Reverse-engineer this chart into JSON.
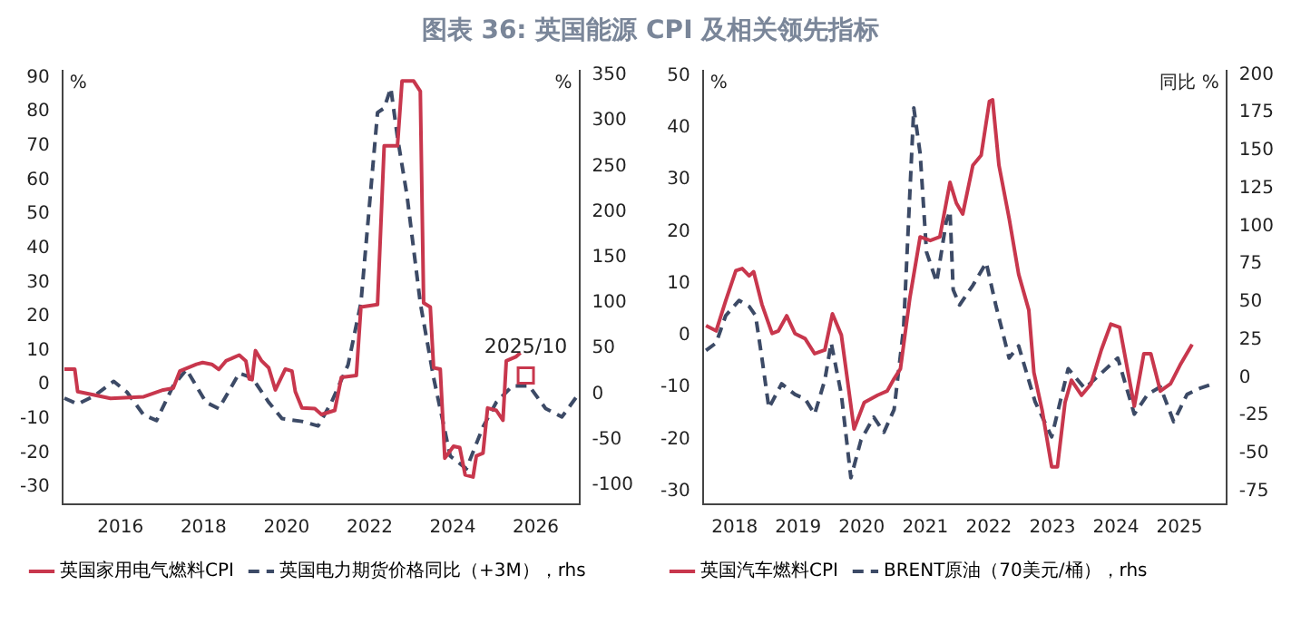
{
  "chart_data": [
    {
      "type": "line",
      "title": "图表 36: 英国能源 CPI 及相关领先指标",
      "ylabel": "%",
      "y2label": "%",
      "legend": "bottom",
      "grid": false,
      "marker": "none",
      "xlim": [
        2014.6,
        2027.05
      ],
      "xticks": [
        2016,
        2018,
        2020,
        2022,
        2024,
        2026
      ],
      "ylim": [
        -35,
        92
      ],
      "yticks": [
        -30,
        -20,
        -10,
        0,
        10,
        20,
        30,
        40,
        50,
        60,
        70,
        80,
        90
      ],
      "y2lim": [
        -121,
        355
      ],
      "y2ticks": [
        -100,
        -50,
        0,
        50,
        100,
        150,
        200,
        250,
        300,
        350
      ],
      "annotations": [
        {
          "text": "2025/10",
          "x": 2025.76,
          "y": 2.7
        }
      ],
      "series": [
        {
          "name": "英国家用电气燃料CPI",
          "color": "#c8374d",
          "line_style": "solid",
          "x": [
            2014.65,
            2014.9,
            2014.97,
            2015.37,
            2015.76,
            2016.56,
            2017.03,
            2017.27,
            2017.43,
            2017.83,
            2017.98,
            2018.2,
            2018.37,
            2018.54,
            2018.86,
            2019.02,
            2019.1,
            2019.17,
            2019.25,
            2019.4,
            2019.57,
            2019.73,
            2019.97,
            2020.13,
            2020.21,
            2020.37,
            2020.68,
            2020.84,
            2021.16,
            2021.32,
            2021.68,
            2021.79,
            2022.19,
            2022.35,
            2022.67,
            2022.78,
            2023.06,
            2023.22,
            2023.3,
            2023.46,
            2023.54,
            2023.7,
            2023.81,
            2024.02,
            2024.17,
            2024.3,
            2024.49,
            2024.57,
            2024.73,
            2024.84,
            2025.05,
            2025.21,
            2025.29,
            2025.52,
            2025.63
          ],
          "values": [
            4.6,
            4.6,
            -2,
            -3,
            -4,
            -3.5,
            -1.5,
            -1,
            4,
            6,
            6.5,
            6,
            4.5,
            7,
            8.7,
            7,
            1.7,
            1.5,
            10,
            7,
            5,
            -1.5,
            4.6,
            4,
            -2,
            -6.8,
            -7,
            -8.7,
            -7.5,
            2.2,
            2.7,
            22.8,
            23.5,
            70,
            70,
            89,
            89,
            86,
            24,
            22.8,
            5,
            4.6,
            -21.5,
            -18,
            -18.4,
            -26.4,
            -27,
            -20.8,
            -20,
            -6.8,
            -7.5,
            -10.4,
            7,
            8.2,
            9.4
          ]
        },
        {
          "type": "scatter",
          "color": "#c8374d",
          "marker": "square",
          "x": [
            2025.76
          ],
          "values": [
            2.7
          ]
        },
        {
          "name": "英国电力期货价格同比（+3M），rhs",
          "color": "#3c4a66",
          "line_style": "dashed",
          "axis": "y2",
          "x": [
            2014.65,
            2014.97,
            2015.37,
            2015.84,
            2016.16,
            2016.56,
            2016.87,
            2017.27,
            2017.59,
            2018.06,
            2018.37,
            2018.86,
            2019.17,
            2019.57,
            2019.89,
            2020.37,
            2020.76,
            2021.08,
            2021.48,
            2021.79,
            2022.19,
            2022.35,
            2022.51,
            2022.67,
            2022.9,
            2023.22,
            2023.54,
            2023.94,
            2024.33,
            2024.73,
            2025.05,
            2025.44,
            2025.84,
            2026.24,
            2026.63,
            2027.03
          ],
          "values": [
            -4.5,
            -11,
            -2,
            14,
            2,
            -23,
            -29,
            9,
            27,
            -9,
            -16,
            23,
            18,
            -9,
            -27,
            -30,
            -35,
            -9,
            32,
            100,
            309,
            314,
            336,
            282,
            218,
            100,
            18,
            -68,
            -82,
            -36,
            -9,
            9,
            9,
            -16,
            -25,
            0
          ]
        }
      ]
    },
    {
      "type": "line",
      "ylabel": "%",
      "y2label": "同比 %",
      "legend": "bottom",
      "grid": false,
      "marker": "none",
      "xlim": [
        2018,
        2026.24
      ],
      "xticks": [
        {
          "value": 2018.5,
          "label": "2018"
        },
        {
          "value": 2019.5,
          "label": "2019"
        },
        {
          "value": 2020.5,
          "label": "2020"
        },
        {
          "value": 2021.5,
          "label": "2021"
        },
        {
          "value": 2022.5,
          "label": "2022"
        },
        {
          "value": 2023.5,
          "label": "2023"
        },
        {
          "value": 2024.5,
          "label": "2024"
        },
        {
          "value": 2025.5,
          "label": "2025"
        }
      ],
      "ylim": [
        -32.5,
        51
      ],
      "yticks": [
        -30,
        -20,
        -10,
        0,
        10,
        20,
        30,
        40,
        50
      ],
      "y2lim": [
        -83.5,
        202.6
      ],
      "y2ticks": [
        -75,
        -50,
        -25,
        0,
        25,
        50,
        75,
        100,
        125,
        150,
        175,
        200
      ],
      "series": [
        {
          "name": "英国汽车燃料CPI",
          "color": "#c8374d",
          "line_style": "solid",
          "x": [
            2018.05,
            2018.21,
            2018.36,
            2018.52,
            2018.62,
            2018.73,
            2018.8,
            2018.93,
            2019.09,
            2019.19,
            2019.32,
            2019.45,
            2019.61,
            2019.76,
            2019.92,
            2020.04,
            2020.18,
            2020.38,
            2020.54,
            2020.75,
            2020.9,
            2021.01,
            2021.11,
            2021.26,
            2021.42,
            2021.58,
            2021.73,
            2021.89,
            2021.99,
            2022.09,
            2022.25,
            2022.38,
            2022.51,
            2022.56,
            2022.66,
            2022.82,
            2022.97,
            2023.13,
            2023.21,
            2023.34,
            2023.49,
            2023.58,
            2023.7,
            2023.8,
            2023.96,
            2024.11,
            2024.27,
            2024.42,
            2024.56,
            2024.79,
            2024.94,
            2025.05,
            2025.2,
            2025.36,
            2025.51,
            2025.7
          ],
          "values": [
            1.9,
            0.9,
            6.7,
            12.5,
            12.9,
            11.5,
            12.3,
            6,
            0.4,
            0.9,
            3.8,
            0.4,
            -0.6,
            -3.5,
            -2.8,
            4.2,
            0.1,
            -18,
            -12.9,
            -11.5,
            -10.7,
            -8.3,
            -6.4,
            7.4,
            19,
            18.3,
            19,
            29.5,
            25.5,
            23.4,
            32.8,
            34.7,
            45.1,
            45.4,
            32.8,
            22.6,
            11.8,
            4.9,
            -7.1,
            -14.4,
            -25.3,
            -25.3,
            -12.9,
            -8.6,
            -11.5,
            -9.3,
            -2.8,
            2.2,
            1.6,
            -13.6,
            -3.5,
            -3.5,
            -10.7,
            -9.3,
            -5.7,
            -1.7
          ]
        },
        {
          "name": "BRENT原油（70美元/桶），rhs",
          "color": "#3c4a66",
          "line_style": "dashed",
          "axis": "y2",
          "x": [
            2018.05,
            2018.21,
            2018.36,
            2018.57,
            2018.73,
            2018.83,
            2018.93,
            2019.04,
            2019.24,
            2019.45,
            2019.61,
            2019.76,
            2019.92,
            2020.02,
            2020.18,
            2020.33,
            2020.49,
            2020.69,
            2020.85,
            2021.01,
            2021.16,
            2021.32,
            2021.42,
            2021.52,
            2021.68,
            2021.83,
            2021.89,
            2021.94,
            2022.04,
            2022.25,
            2022.46,
            2022.61,
            2022.82,
            2022.97,
            2023.23,
            2023.49,
            2023.75,
            2024.01,
            2024.27,
            2024.53,
            2024.79,
            2025.0,
            2025.2,
            2025.41,
            2025.62,
            2025.82,
            2026.03
          ],
          "values": [
            18,
            23,
            41,
            51,
            47,
            41,
            13,
            -20,
            -4,
            -11,
            -14,
            -24,
            -1.5,
            23,
            -11,
            -66,
            -41,
            -26,
            -36,
            -21,
            33,
            178,
            148,
            83,
            63,
            103,
            110,
            58,
            48,
            61,
            76,
            48,
            13,
            21,
            -16,
            -39,
            6,
            -7,
            3,
            13,
            -24,
            -11,
            -6,
            -29,
            -11,
            -7,
            -4
          ]
        }
      ]
    }
  ]
}
